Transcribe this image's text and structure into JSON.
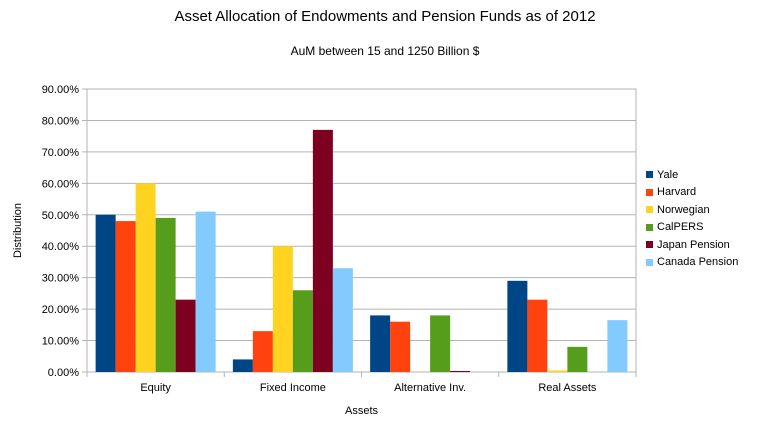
{
  "chart_data": {
    "type": "bar",
    "title": "Asset Allocation of Endowments and Pension Funds as of 2012",
    "subtitle": "AuM between 15 and 1250 Billion $",
    "xlabel": "Assets",
    "ylabel": "Distribution",
    "ylim": [
      0,
      0.9
    ],
    "yticks": [
      "0.00%",
      "10.00%",
      "20.00%",
      "30.00%",
      "40.00%",
      "50.00%",
      "60.00%",
      "70.00%",
      "80.00%",
      "90.00%"
    ],
    "grid": true,
    "legend_position": "right",
    "categories": [
      "Equity",
      "Fixed Income",
      "Alternative Inv.",
      "Real Assets"
    ],
    "series": [
      {
        "name": "Yale",
        "color": "#004586",
        "values": [
          0.5,
          0.04,
          0.18,
          0.29
        ]
      },
      {
        "name": "Harvard",
        "color": "#ff420e",
        "values": [
          0.48,
          0.13,
          0.16,
          0.23
        ]
      },
      {
        "name": "Norwegian",
        "color": "#ffd320",
        "values": [
          0.6,
          0.4,
          0.0,
          0.005
        ]
      },
      {
        "name": "CalPERS",
        "color": "#579d1c",
        "values": [
          0.49,
          0.26,
          0.18,
          0.08
        ]
      },
      {
        "name": "Japan Pension",
        "color": "#7e0021",
        "values": [
          0.23,
          0.77,
          0.002,
          0.0
        ]
      },
      {
        "name": "Canada Pension",
        "color": "#83caff",
        "values": [
          0.51,
          0.33,
          0.0,
          0.165
        ]
      }
    ]
  }
}
